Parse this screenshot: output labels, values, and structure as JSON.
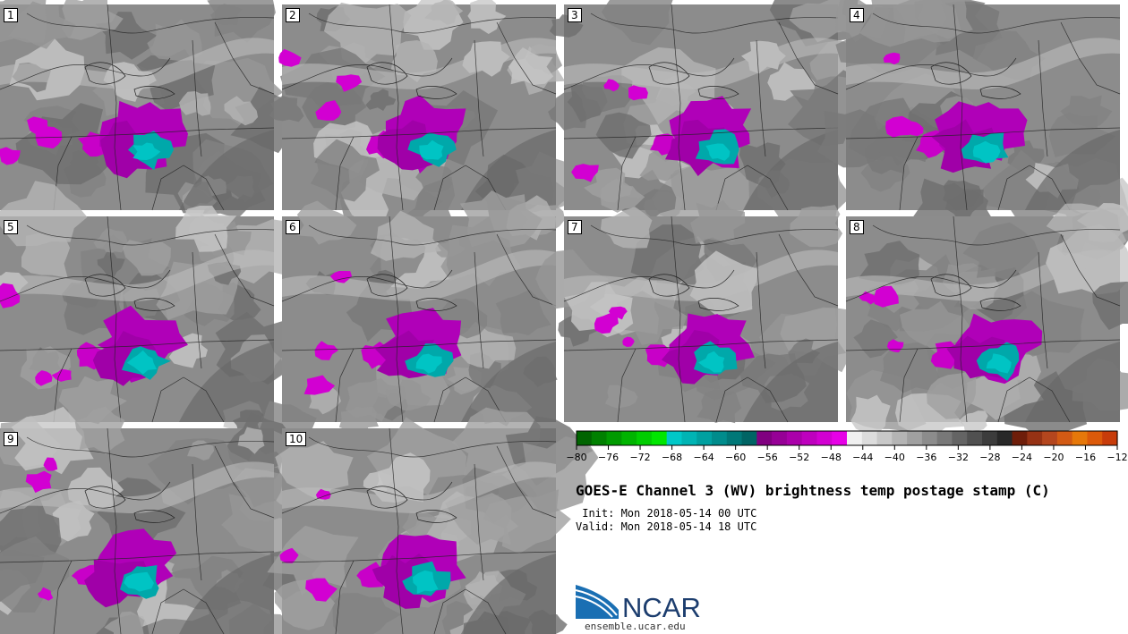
{
  "panels": [
    {
      "number": "1"
    },
    {
      "number": "2"
    },
    {
      "number": "3"
    },
    {
      "number": "4"
    },
    {
      "number": "5"
    },
    {
      "number": "6"
    },
    {
      "number": "7"
    },
    {
      "number": "8"
    },
    {
      "number": "9"
    },
    {
      "number": "10"
    }
  ],
  "colorbar": {
    "colors": [
      "#006400",
      "#008000",
      "#009a00",
      "#00b400",
      "#00cd00",
      "#00e600",
      "#00c8c8",
      "#00b4b4",
      "#00a0a0",
      "#008c8c",
      "#007878",
      "#006464",
      "#800080",
      "#960096",
      "#aa00aa",
      "#be00be",
      "#d200d2",
      "#e600e6",
      "#f0f0f0",
      "#dcdcdc",
      "#c8c8c8",
      "#b4b4b4",
      "#a0a0a0",
      "#8c8c8c",
      "#787878",
      "#646464",
      "#505050",
      "#3c3c3c",
      "#282828",
      "#6e1e0a",
      "#963214",
      "#b4461e",
      "#d25a14",
      "#e6780a",
      "#dc5a0a",
      "#c83c0a"
    ],
    "tick_labels": [
      "−80",
      "−76",
      "−72",
      "−68",
      "−64",
      "−60",
      "−56",
      "−52",
      "−48",
      "−44",
      "−40",
      "−36",
      "−32",
      "−28",
      "−24",
      "−20",
      "−16",
      "−12"
    ]
  },
  "title": "GOES-E Channel 3 (WV) brightness temp postage stamp (C)",
  "init_line": " Init: Mon 2018-05-14 00 UTC",
  "valid_line": "Valid: Mon 2018-05-14 18 UTC",
  "logo_text": "NCAR",
  "url": "ensemble.ucar.edu"
}
